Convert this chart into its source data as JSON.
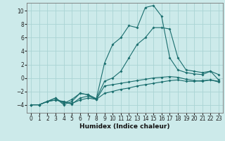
{
  "xlabel": "Humidex (Indice chaleur)",
  "bg_color": "#cceaea",
  "line_color": "#1a6e6e",
  "grid_color": "#aad4d4",
  "xlim": [
    -0.5,
    23.5
  ],
  "ylim": [
    -5.2,
    11.2
  ],
  "xticks": [
    0,
    1,
    2,
    3,
    4,
    5,
    6,
    7,
    8,
    9,
    10,
    11,
    12,
    13,
    14,
    15,
    16,
    17,
    18,
    19,
    20,
    21,
    22,
    23
  ],
  "yticks": [
    -4,
    -2,
    0,
    2,
    4,
    6,
    8,
    10
  ],
  "series": [
    [
      -4,
      -4,
      -3.5,
      -3.3,
      -3.5,
      -3.8,
      -3.3,
      -3.0,
      -3.2,
      -2.3,
      -2.0,
      -1.7,
      -1.5,
      -1.2,
      -1.0,
      -0.8,
      -0.6,
      -0.4,
      -0.3,
      -0.5,
      -0.5,
      -0.4,
      -0.3,
      -0.5
    ],
    [
      -4,
      -4,
      -3.5,
      -3.3,
      -3.6,
      -3.9,
      -3.0,
      -2.7,
      -3.2,
      -1.2,
      -1.0,
      -0.8,
      -0.6,
      -0.4,
      -0.2,
      0.0,
      0.1,
      0.2,
      0.1,
      -0.2,
      -0.4,
      -0.5,
      -0.3,
      -0.6
    ],
    [
      -4,
      -4,
      -3.5,
      -3.0,
      -4.0,
      -3.5,
      -2.3,
      -2.5,
      -3.1,
      2.2,
      5.0,
      6.0,
      7.8,
      7.5,
      10.5,
      10.8,
      9.2,
      3.0,
      1.2,
      0.8,
      0.6,
      0.5,
      1.0,
      -0.3
    ],
    [
      -4,
      -4,
      -3.5,
      -3.0,
      -3.8,
      -3.2,
      -2.3,
      -2.5,
      -3.1,
      -0.5,
      0.0,
      1.0,
      3.0,
      5.0,
      6.0,
      7.5,
      7.5,
      7.3,
      3.0,
      1.2,
      1.0,
      0.8,
      1.0,
      0.5
    ]
  ]
}
